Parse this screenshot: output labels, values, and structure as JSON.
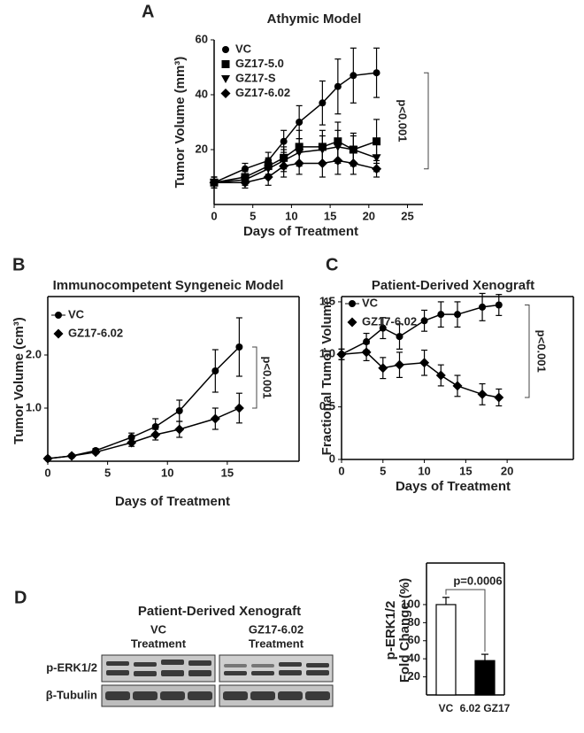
{
  "chart_data": [
    {
      "type": "line",
      "panel_label": "A",
      "title": "Athymic Model",
      "x_label": "Days of Treatment",
      "y_label": "Tumor Volume (mm³)",
      "x": [
        0,
        4,
        7,
        9,
        11,
        14,
        16,
        18,
        21
      ],
      "series": [
        {
          "name": "VC",
          "color": "#000000",
          "marker": "circle",
          "values": [
            8,
            13,
            16,
            23,
            30,
            37,
            43,
            47,
            48
          ],
          "errors": [
            2,
            2,
            3,
            4,
            6,
            8,
            10,
            10,
            9
          ]
        },
        {
          "name": "GZ17-5.0",
          "color": "#000000",
          "marker": "square",
          "values": [
            8,
            10,
            14,
            17,
            21,
            21,
            23,
            20,
            23
          ],
          "errors": [
            2,
            2,
            3,
            4,
            6,
            6,
            7,
            6,
            8
          ]
        },
        {
          "name": "GZ17-S",
          "color": "#000000",
          "marker": "triangle-down",
          "values": [
            8,
            9,
            13,
            16,
            19,
            20,
            21,
            20,
            17
          ],
          "errors": [
            2,
            2,
            3,
            4,
            5,
            5,
            6,
            5,
            5
          ]
        },
        {
          "name": "GZ17-6.02",
          "color": "#000000",
          "marker": "diamond",
          "values": [
            8,
            8,
            10,
            14,
            15,
            15,
            16,
            15,
            13
          ],
          "errors": [
            2,
            2,
            3,
            4,
            4,
            5,
            5,
            4,
            3
          ]
        }
      ],
      "xlim": [
        0,
        27
      ],
      "xticks": [
        0,
        5,
        10,
        15,
        20,
        25
      ],
      "ylim": [
        0,
        60
      ],
      "yticks": [
        20,
        40,
        60
      ],
      "annotation": "p<0.001",
      "frame": false
    },
    {
      "type": "line",
      "panel_label": "B",
      "title": "Immunocompetent Syngeneic Model",
      "x_label": "Days of Treatment",
      "y_label": "Tumor Volume (cm³)",
      "x": [
        0,
        2,
        4,
        7,
        9,
        11,
        14,
        16
      ],
      "series": [
        {
          "name": "VC",
          "color": "#000000",
          "marker": "circle",
          "values": [
            0.05,
            0.1,
            0.2,
            0.45,
            0.65,
            0.95,
            1.7,
            2.15
          ],
          "errors": [
            0.02,
            0.03,
            0.04,
            0.08,
            0.15,
            0.2,
            0.4,
            0.55
          ]
        },
        {
          "name": "GZ17-6.02",
          "color": "#000000",
          "marker": "diamond",
          "values": [
            0.05,
            0.1,
            0.17,
            0.35,
            0.5,
            0.6,
            0.8,
            1.0
          ],
          "errors": [
            0.02,
            0.03,
            0.03,
            0.07,
            0.1,
            0.15,
            0.2,
            0.28
          ]
        }
      ],
      "xlim": [
        0,
        21
      ],
      "xticks": [
        0,
        5,
        10,
        15
      ],
      "ylim": [
        0,
        3.1
      ],
      "yticks": [
        {
          "value": 1,
          "label": "1.0"
        },
        {
          "value": 2,
          "label": "2.0"
        }
      ],
      "annotation": "p<0.001",
      "frame": true
    },
    {
      "type": "line",
      "panel_label": "C",
      "title": "Patient-Derived Xenograft",
      "x_label": "Days of Treatment",
      "y_label": "Fractional Tumor Volume",
      "x": [
        0,
        3,
        5,
        7,
        10,
        12,
        14,
        17,
        19
      ],
      "series": [
        {
          "name": "VC",
          "color": "#000000",
          "marker": "circle",
          "values": [
            1.0,
            1.12,
            1.25,
            1.17,
            1.32,
            1.38,
            1.38,
            1.45,
            1.47
          ],
          "errors": [
            0.05,
            0.08,
            0.1,
            0.12,
            0.1,
            0.12,
            0.12,
            0.13,
            0.1
          ]
        },
        {
          "name": "GZ17-6.02",
          "color": "#000000",
          "marker": "diamond",
          "values": [
            1.0,
            1.02,
            0.87,
            0.9,
            0.92,
            0.8,
            0.7,
            0.62,
            0.59
          ],
          "errors": [
            0.05,
            0.08,
            0.1,
            0.12,
            0.12,
            0.1,
            0.1,
            0.1,
            0.08
          ]
        }
      ],
      "xlim": [
        0,
        28
      ],
      "xticks": [
        0,
        5,
        10,
        15,
        20
      ],
      "ylim": [
        0,
        1.55
      ],
      "yticks": [
        0,
        0.5,
        {
          "value": 1,
          "label": "1.0"
        },
        1.5
      ],
      "annotation": "p<0.001",
      "frame": true
    },
    {
      "type": "bar",
      "categories": [
        "VC",
        "6.02 GZ17"
      ],
      "values": [
        100,
        38
      ],
      "errors": [
        8,
        7
      ],
      "colors": [
        "#ffffff",
        "#000000"
      ],
      "y_label": [
        "p-ERK1/2",
        "Fold Change (%)"
      ],
      "ylim": [
        0,
        146
      ],
      "yticks": [
        20,
        40,
        60,
        80,
        100
      ],
      "annotation": "p=0.0006",
      "frame": true
    }
  ],
  "blot": {
    "panel_label": "D",
    "title": "Patient-Derived Xenograft",
    "groups": [
      [
        "VC",
        "Treatment"
      ],
      [
        "GZ17-6.02",
        "Treatment"
      ]
    ],
    "rows": [
      "p-ERK1/2",
      "β-Tubulin"
    ]
  }
}
